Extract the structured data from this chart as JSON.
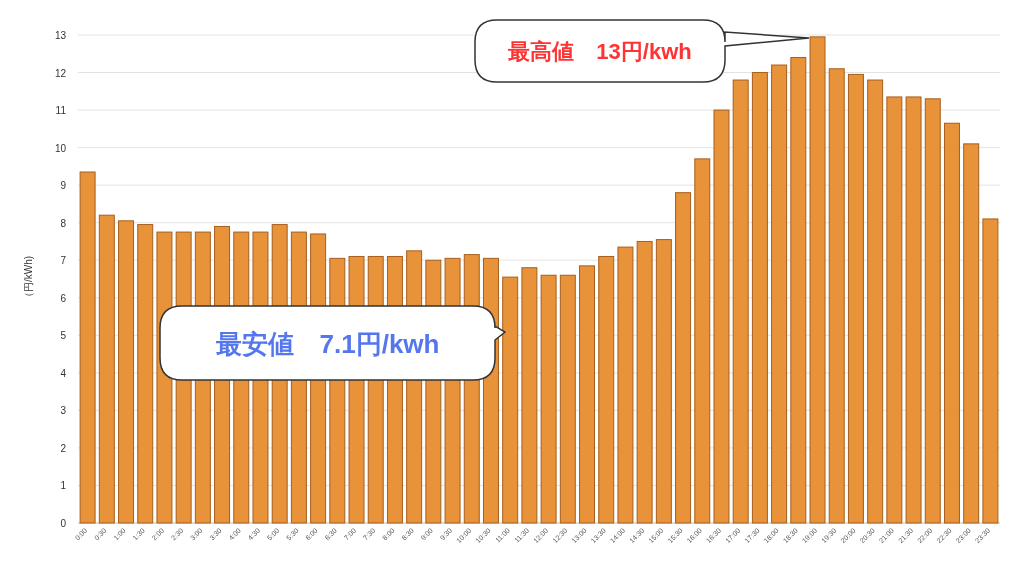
{
  "chart_data": {
    "type": "bar",
    "ylabel": "（円/kWh)",
    "categories": [
      "0:00",
      "0:30",
      "1:00",
      "1:30",
      "2:00",
      "2:30",
      "3:00",
      "3:30",
      "4:00",
      "4:30",
      "5:00",
      "5:30",
      "6:00",
      "6:30",
      "7:00",
      "7:30",
      "8:00",
      "8:30",
      "9:00",
      "9:30",
      "10:00",
      "10:30",
      "11:00",
      "11:30",
      "12:00",
      "12:30",
      "13:00",
      "13:30",
      "14:00",
      "14:30",
      "15:00",
      "15:30",
      "16:00",
      "16:30",
      "17:00",
      "17:30",
      "18:00",
      "18:30",
      "19:00",
      "19:30",
      "20:00",
      "20:30",
      "21:00",
      "21:30",
      "22:00",
      "22:30",
      "23:00",
      "23:30"
    ],
    "values": [
      9.35,
      8.2,
      8.05,
      7.95,
      7.75,
      7.75,
      7.75,
      7.9,
      7.75,
      7.75,
      7.95,
      7.75,
      7.7,
      7.05,
      7.1,
      7.1,
      7.1,
      7.25,
      7.0,
      7.05,
      7.15,
      7.05,
      6.55,
      6.8,
      6.6,
      6.6,
      6.85,
      7.1,
      7.35,
      7.5,
      7.55,
      8.8,
      9.7,
      11.0,
      11.8,
      12.0,
      12.2,
      12.4,
      12.95,
      12.1,
      11.95,
      11.8,
      11.35,
      11.35,
      11.3,
      10.65,
      10.1,
      8.1
    ],
    "color": "#e8923a",
    "ylim": [
      0,
      13
    ],
    "yticks": [
      0,
      1,
      2,
      3,
      4,
      5,
      6,
      7,
      8,
      9,
      10,
      11,
      12,
      13
    ],
    "grid": "y",
    "annotations": [
      "最高値　13円/kwh",
      "最安値　7.1円/kwh"
    ]
  }
}
